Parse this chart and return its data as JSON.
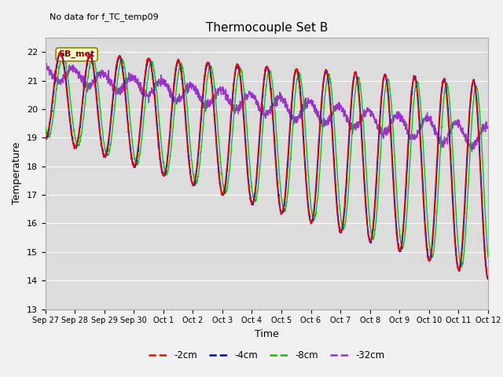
{
  "title": "Thermocouple Set B",
  "xlabel": "Time",
  "ylabel": "Temperature",
  "annotation_text": "No data for f_TC_temp09",
  "sb_met_label": "SB_met",
  "ylim": [
    13.0,
    22.5
  ],
  "yticks": [
    13.0,
    14.0,
    15.0,
    16.0,
    17.0,
    18.0,
    19.0,
    20.0,
    21.0,
    22.0
  ],
  "colors": {
    "2cm": "#ff0000",
    "4cm": "#0000cc",
    "8cm": "#00cc00",
    "32cm": "#9933cc"
  },
  "legend_labels": [
    "-2cm",
    "-4cm",
    "-8cm",
    "-32cm"
  ],
  "bg_color": "#f0f0f0",
  "plot_bg": "#dcdcdc",
  "tick_dates": [
    "Sep 27",
    "Sep 28",
    "Sep 29",
    "Sep 30",
    "Oct 1",
    "Oct 2",
    "Oct 3",
    "Oct 4",
    "Oct 5",
    "Oct 6",
    "Oct 7",
    "Oct 8",
    "Oct 9",
    "Oct 10",
    "Oct 11",
    "Oct 12"
  ],
  "figwidth": 6.4,
  "figheight": 4.8,
  "dpi": 100
}
